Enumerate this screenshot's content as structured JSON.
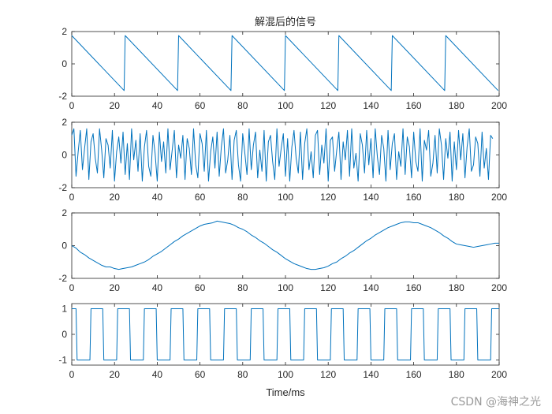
{
  "figure": {
    "title": "解混后的信号",
    "watermark": "CSDN @海神之光"
  },
  "style": {
    "line_color": "#0072BD",
    "axes_color": "#262626",
    "background": "#ffffff"
  },
  "chart_data": [
    {
      "type": "line",
      "title": "解混后的信号",
      "xlabel": "",
      "ylabel": "",
      "xlim": [
        0,
        200
      ],
      "ylim": [
        -2,
        2
      ],
      "xticks": [
        0,
        20,
        40,
        60,
        80,
        100,
        120,
        140,
        160,
        180,
        200
      ],
      "yticks": [
        -2,
        0,
        2
      ],
      "grid": false,
      "series": [
        {
          "waveform": "sawtooth",
          "period": 25,
          "start_value": 1.75,
          "end_value": -1.65,
          "x": [
            0,
            24.5,
            25,
            49.5,
            50,
            74.5,
            75,
            99.5,
            100,
            124.5,
            125,
            149.5,
            150,
            174.5,
            175,
            199.5
          ],
          "values": [
            1.75,
            -1.65,
            1.75,
            -1.65,
            1.75,
            -1.65,
            1.75,
            -1.65,
            1.75,
            -1.65,
            1.75,
            -1.65,
            1.75,
            -1.65,
            1.75,
            -1.65
          ]
        }
      ]
    },
    {
      "type": "line",
      "title": "",
      "xlabel": "",
      "ylabel": "",
      "xlim": [
        0,
        200
      ],
      "ylim": [
        -2,
        2
      ],
      "xticks": [
        0,
        20,
        40,
        60,
        80,
        100,
        120,
        140,
        160,
        180,
        200
      ],
      "yticks": [
        -2,
        0,
        2
      ],
      "grid": false,
      "series": [
        {
          "waveform": "random noise",
          "x_step": 1,
          "values": [
            1.2,
            1.6,
            -1.3,
            0.2,
            1.5,
            -0.9,
            0.4,
            1.6,
            -1.5,
            0.8,
            1.3,
            -0.2,
            -1.1,
            1.6,
            0.3,
            -1.4,
            1.0,
            0.6,
            -0.8,
            1.5,
            -1.6,
            0.2,
            1.1,
            -0.5,
            1.4,
            -1.2,
            0.7,
            -1.5,
            1.6,
            -0.3,
            0.9,
            -1.0,
            1.3,
            -1.6,
            0.5,
            1.5,
            -0.7,
            -1.3,
            1.2,
            0.1,
            -1.6,
            1.4,
            -0.4,
            0.8,
            -1.1,
            1.6,
            -0.9,
            0.3,
            1.5,
            -1.4,
            0.6,
            -0.2,
            1.2,
            -1.5,
            1.0,
            0.4,
            -1.2,
            1.6,
            -0.6,
            -1.4,
            1.3,
            0.7,
            -1.0,
            1.5,
            -1.6,
            0.2,
            1.1,
            -0.8,
            1.4,
            -1.3,
            0.5,
            1.6,
            -1.1,
            -0.3,
            1.2,
            -1.5,
            0.9,
            1.5,
            -0.6,
            -1.6,
            1.3,
            0.1,
            -1.2,
            1.6,
            -0.9,
            0.6,
            1.4,
            -1.4,
            0.3,
            -1.0,
            1.5,
            -1.6,
            0.8,
            1.2,
            -0.4,
            -1.5,
            1.6,
            -0.7,
            0.4,
            1.3,
            -1.3,
            1.0,
            -1.6,
            0.5,
            1.5,
            -0.2,
            -1.1,
            1.4,
            -1.5,
            0.7,
            1.6,
            -0.9,
            0.2,
            -1.4,
            1.2,
            1.5,
            -1.2,
            0.6,
            -0.5,
            1.6,
            -1.6,
            0.9,
            1.1,
            -1.0,
            0.3,
            1.4,
            -1.5,
            0.8,
            -0.3,
            1.5,
            -1.3,
            1.6,
            -0.8,
            0.1,
            -1.6,
            1.3,
            0.6,
            -1.1,
            1.5,
            -0.6,
            1.0,
            -1.4,
            1.6,
            -0.1,
            -1.2,
            1.2,
            0.4,
            -1.6,
            1.5,
            -0.9,
            0.7,
            1.3,
            -1.5,
            0.2,
            -0.7,
            1.6,
            -1.2,
            1.1,
            0.5,
            -1.4,
            1.4,
            -0.4,
            -1.0,
            1.6,
            -1.6,
            0.9,
            0.3,
            1.5,
            -1.3,
            -0.5,
            1.2,
            -1.1,
            1.6,
            0.6,
            -1.5,
            1.0,
            -0.2,
            1.4,
            -1.6,
            0.8,
            -0.9,
            1.5,
            -0.3,
            1.3,
            -1.4,
            0.5,
            1.6,
            -1.0,
            -0.6,
            1.1,
            0.7,
            -1.3,
            1.4,
            -0.8,
            0.4,
            -1.5,
            1.2,
            1.0
          ]
        }
      ]
    },
    {
      "type": "line",
      "title": "",
      "xlabel": "",
      "ylabel": "",
      "xlim": [
        0,
        200
      ],
      "ylim": [
        -2,
        2
      ],
      "xticks": [
        0,
        20,
        40,
        60,
        80,
        100,
        120,
        140,
        160,
        180,
        200
      ],
      "yticks": [
        -2,
        0,
        2
      ],
      "grid": false,
      "series": [
        {
          "waveform": "sine",
          "x_step": 2,
          "values": [
            0.0,
            -0.15,
            -0.4,
            -0.55,
            -0.75,
            -0.9,
            -1.05,
            -1.2,
            -1.3,
            -1.3,
            -1.4,
            -1.45,
            -1.4,
            -1.35,
            -1.3,
            -1.2,
            -1.1,
            -1.0,
            -0.85,
            -0.65,
            -0.5,
            -0.35,
            -0.15,
            0.05,
            0.25,
            0.4,
            0.6,
            0.75,
            0.9,
            1.05,
            1.2,
            1.3,
            1.35,
            1.4,
            1.5,
            1.45,
            1.4,
            1.35,
            1.25,
            1.1,
            1.0,
            0.85,
            0.65,
            0.5,
            0.3,
            0.15,
            -0.05,
            -0.25,
            -0.4,
            -0.6,
            -0.8,
            -0.95,
            -1.1,
            -1.2,
            -1.3,
            -1.4,
            -1.45,
            -1.45,
            -1.4,
            -1.35,
            -1.25,
            -1.1,
            -1.0,
            -0.8,
            -0.65,
            -0.45,
            -0.3,
            -0.1,
            0.1,
            0.3,
            0.45,
            0.65,
            0.8,
            0.95,
            1.1,
            1.2,
            1.3,
            1.4,
            1.45,
            1.45,
            1.4,
            1.4,
            1.3,
            1.2,
            1.1,
            0.95,
            0.8,
            0.6,
            0.45,
            0.25,
            0.1,
            0.05,
            0.0,
            -0.05,
            -0.1,
            -0.05,
            0.0,
            0.05,
            0.1,
            0.15,
            0.15
          ]
        }
      ]
    },
    {
      "type": "line",
      "title": "",
      "xlabel": "Time/ms",
      "ylabel": "",
      "xlim": [
        0,
        200
      ],
      "ylim": [
        -1.2,
        1.2
      ],
      "xticks": [
        0,
        20,
        40,
        60,
        80,
        100,
        120,
        140,
        160,
        180,
        200
      ],
      "yticks": [
        -1,
        0,
        1
      ],
      "grid": false,
      "series": [
        {
          "waveform": "square",
          "period": 12.5,
          "low_value": -1.0,
          "high_value": 1.0,
          "x": [
            0,
            2,
            2.5,
            8.5,
            9,
            14.5,
            15,
            21,
            21.5,
            27,
            27.5,
            33.5,
            34,
            39.5,
            40,
            46,
            46.5,
            52,
            52.5,
            58.5,
            59,
            64.5,
            65,
            71,
            71.5,
            77,
            77.5,
            83.5,
            84,
            89.5,
            90,
            96,
            96.5,
            102,
            102.5,
            108.5,
            109,
            114.5,
            115,
            121,
            121.5,
            127,
            127.5,
            133.5,
            134,
            139.5,
            140,
            146,
            146.5,
            152,
            152.5,
            158.5,
            159,
            164.5,
            165,
            171,
            171.5,
            177,
            177.5,
            183.5,
            184,
            189.5,
            190,
            196,
            196.5,
            200
          ],
          "values": [
            1.0,
            1.0,
            -1.0,
            -1.0,
            1.0,
            1.0,
            -1.0,
            -1.0,
            1.0,
            1.0,
            -1.0,
            -1.0,
            1.0,
            1.0,
            -1.0,
            -1.0,
            1.0,
            1.0,
            -1.0,
            -1.0,
            1.0,
            1.0,
            -1.0,
            -1.0,
            1.0,
            1.0,
            -1.0,
            -1.0,
            1.0,
            1.0,
            -1.0,
            -1.0,
            1.0,
            1.0,
            -1.0,
            -1.0,
            1.0,
            1.0,
            -1.0,
            -1.0,
            1.0,
            1.0,
            -1.0,
            -1.0,
            1.0,
            1.0,
            -1.0,
            -1.0,
            1.0,
            1.0,
            -1.0,
            -1.0,
            1.0,
            1.0,
            -1.0,
            -1.0,
            1.0,
            1.0,
            -1.0,
            -1.0,
            1.0,
            1.0,
            -1.0,
            -1.0,
            1.0,
            1.0
          ]
        }
      ]
    }
  ]
}
